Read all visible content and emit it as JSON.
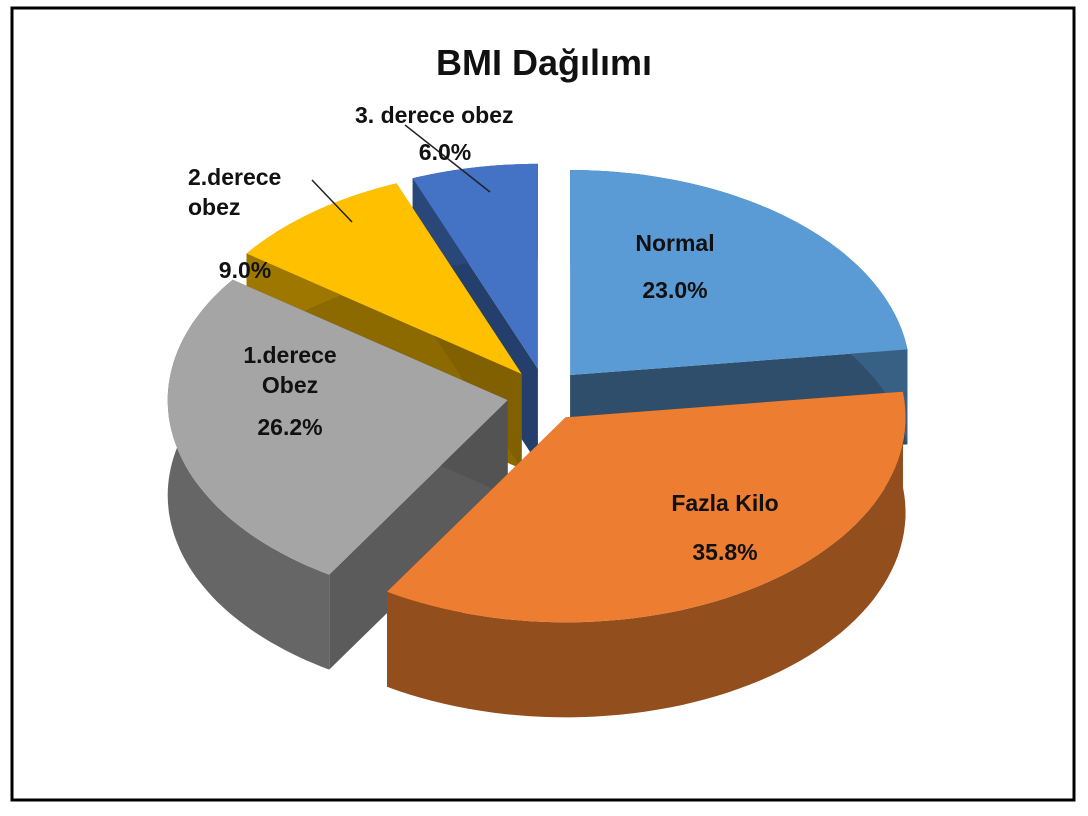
{
  "chart_data": {
    "type": "pie",
    "title": "BMI Dağılımı",
    "categories": [
      "Normal",
      "Fazla Kilo",
      "1.derece Obez",
      "2.derece obez",
      "3. derece obez"
    ],
    "values": [
      23.0,
      35.8,
      26.2,
      9.0,
      6.0
    ],
    "value_labels": [
      "23.0%",
      "35.8%",
      "26.2%",
      "9.0%",
      "6.0%"
    ],
    "colors": [
      "#5b9bd5",
      "#ed7d31",
      "#a5a5a5",
      "#ffc000",
      "#4472c4"
    ]
  }
}
